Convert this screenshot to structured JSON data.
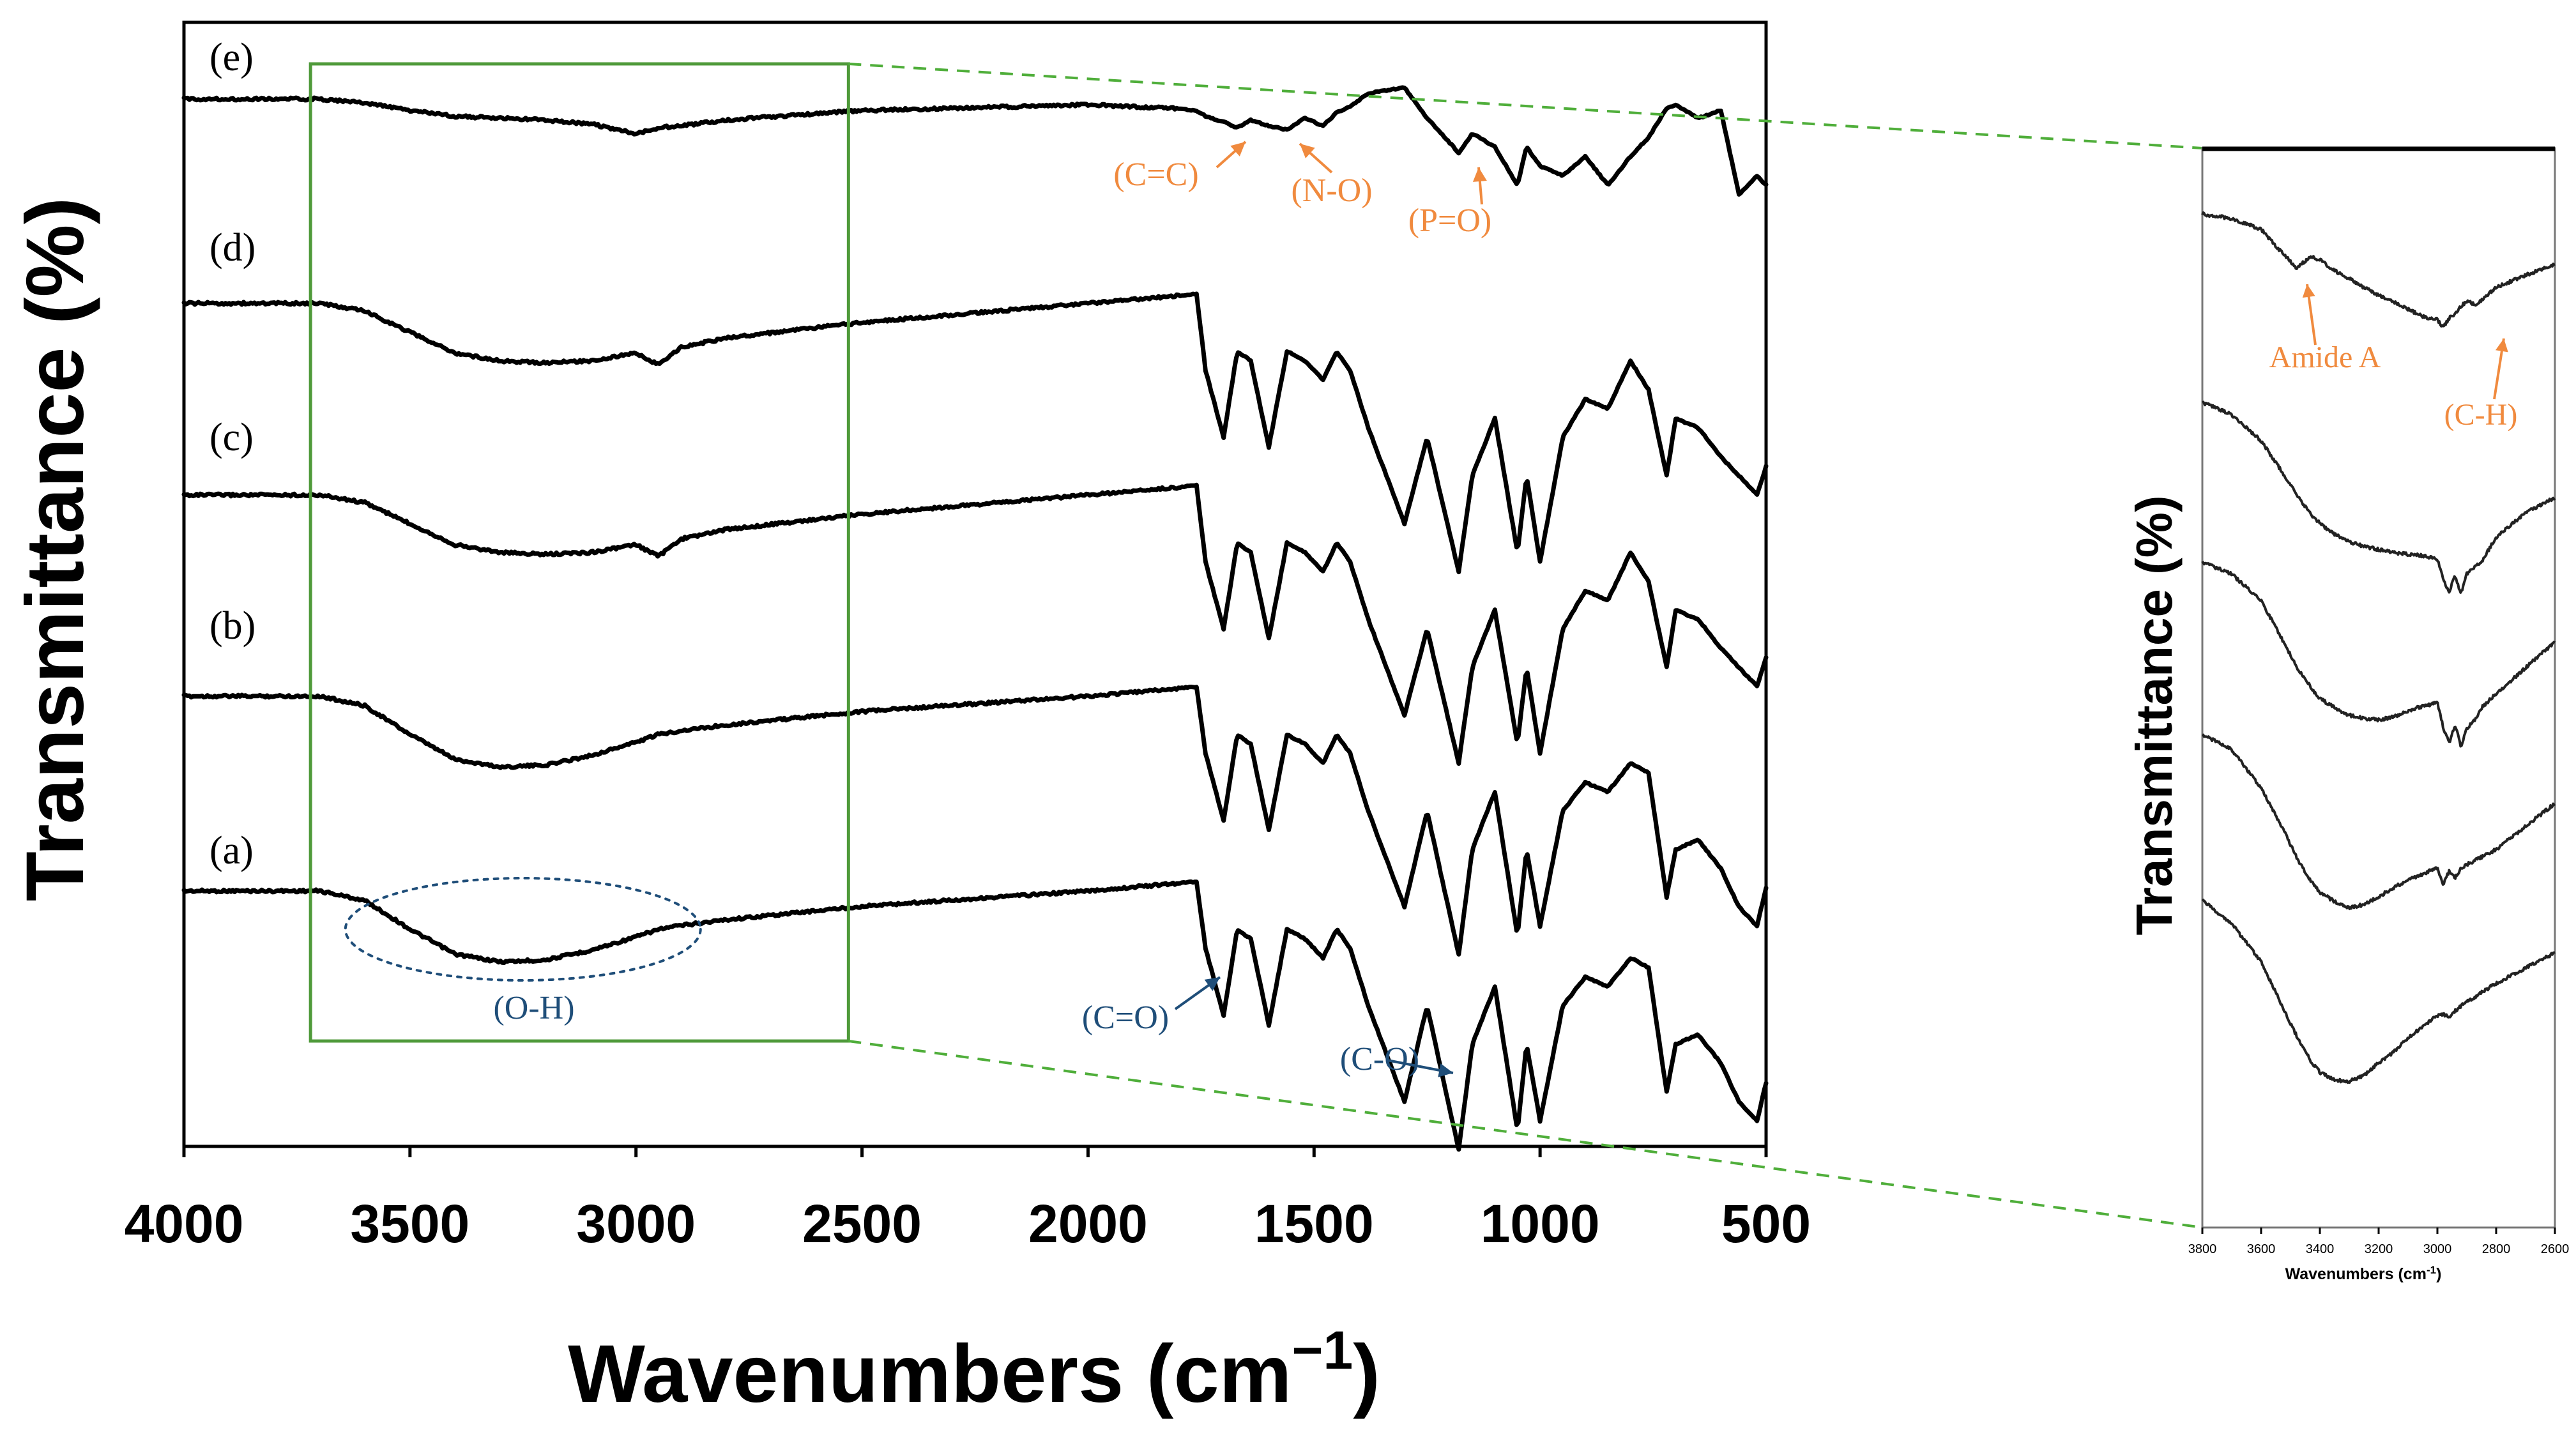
{
  "chart_data": [
    {
      "type": "line",
      "title": "",
      "xlabel": "Wavenumbers (cm",
      "xlabel_superscript": "−1",
      "xlabel_close": ")",
      "ylabel": "Transmittance (%)",
      "xlim": [
        4000,
        500
      ],
      "x_ticks": [
        "4000",
        "3500",
        "3000",
        "2500",
        "2000",
        "1500",
        "1000",
        "500"
      ],
      "x_tick_values": [
        4000,
        3500,
        3000,
        2500,
        2000,
        1500,
        1000,
        500
      ],
      "x": [
        4000,
        3700,
        3600,
        3500,
        3400,
        3300,
        3200,
        3100,
        3000,
        2950,
        2900,
        2800,
        2500,
        2000,
        1800,
        1760,
        1740,
        1700,
        1670,
        1640,
        1600,
        1560,
        1520,
        1480,
        1450,
        1420,
        1380,
        1300,
        1250,
        1180,
        1150,
        1100,
        1050,
        1030,
        1000,
        950,
        900,
        850,
        800,
        760,
        720,
        700,
        650,
        600,
        560,
        520,
        500
      ],
      "series": [
        {
          "name": "(a)",
          "label": "(a)",
          "offset": 0,
          "values": [
            0.0,
            0.0,
            -0.5,
            -2.0,
            -3.3,
            -3.7,
            -3.6,
            -3.1,
            -2.4,
            -2.0,
            -1.8,
            -1.5,
            -0.8,
            0.0,
            0.4,
            0.5,
            -3.0,
            -6.5,
            -2.0,
            -2.5,
            -7.0,
            -2.0,
            -2.5,
            -3.5,
            -2.0,
            -3.0,
            -6.0,
            -11.0,
            -6.0,
            -13.5,
            -8.0,
            -5.0,
            -12.5,
            -8.0,
            -12.0,
            -6.0,
            -4.5,
            -5.0,
            -3.5,
            -4.0,
            -10.5,
            -8.0,
            -7.5,
            -9.0,
            -11.0,
            -12.0,
            -10.0
          ]
        },
        {
          "name": "(b)",
          "label": "(b)",
          "offset": 1,
          "values": [
            0.0,
            0.0,
            -0.5,
            -2.0,
            -3.3,
            -3.7,
            -3.6,
            -3.1,
            -2.4,
            -2.0,
            -1.8,
            -1.5,
            -0.8,
            0.0,
            0.4,
            0.5,
            -3.0,
            -6.5,
            -2.0,
            -2.5,
            -7.0,
            -2.0,
            -2.5,
            -3.5,
            -2.0,
            -3.0,
            -6.0,
            -11.0,
            -6.0,
            -13.5,
            -8.0,
            -5.0,
            -12.5,
            -8.0,
            -12.0,
            -6.0,
            -4.5,
            -5.0,
            -3.5,
            -4.0,
            -10.5,
            -8.0,
            -7.5,
            -9.0,
            -11.0,
            -12.0,
            -10.0
          ]
        },
        {
          "name": "(c)",
          "label": "(c)",
          "offset": 2,
          "values": [
            0.0,
            0.0,
            -0.4,
            -1.5,
            -2.6,
            -3.0,
            -3.1,
            -3.0,
            -2.6,
            -3.2,
            -2.3,
            -1.8,
            -1.0,
            0.0,
            0.4,
            0.5,
            -3.5,
            -7.0,
            -2.5,
            -3.0,
            -7.5,
            -2.5,
            -3.0,
            -4.0,
            -2.5,
            -3.5,
            -6.5,
            -11.5,
            -7.0,
            -14.0,
            -9.0,
            -6.0,
            -13.0,
            -9.0,
            -13.5,
            -7.0,
            -5.0,
            -5.5,
            -3.0,
            -4.5,
            -9.0,
            -6.0,
            -6.5,
            -8.0,
            -9.0,
            -10.0,
            -8.5
          ]
        },
        {
          "name": "(d)",
          "label": "(d)",
          "offset": 3,
          "values": [
            0.0,
            0.0,
            -0.4,
            -1.5,
            -2.6,
            -3.0,
            -3.1,
            -3.0,
            -2.6,
            -3.2,
            -2.3,
            -1.8,
            -1.0,
            0.0,
            0.4,
            0.5,
            -3.5,
            -7.0,
            -2.5,
            -3.0,
            -7.5,
            -2.5,
            -3.0,
            -4.0,
            -2.5,
            -3.5,
            -6.5,
            -11.5,
            -7.0,
            -14.0,
            -9.0,
            -6.0,
            -13.0,
            -9.0,
            -13.5,
            -7.0,
            -5.0,
            -5.5,
            -3.0,
            -4.5,
            -9.0,
            -6.0,
            -6.5,
            -8.0,
            -9.0,
            -10.0,
            -8.5
          ]
        },
        {
          "name": "(e)",
          "label": "(e)",
          "offset": 4,
          "values": [
            0.0,
            0.0,
            -0.2,
            -0.6,
            -0.9,
            -1.0,
            -1.1,
            -1.3,
            -1.8,
            -1.5,
            -1.4,
            -1.1,
            -0.6,
            -0.3,
            -0.5,
            -0.6,
            -0.9,
            -1.2,
            -1.5,
            -1.1,
            -1.4,
            -1.6,
            -1.0,
            -1.4,
            -0.7,
            -0.4,
            0.3,
            0.6,
            -1.0,
            -2.8,
            -1.8,
            -2.5,
            -4.5,
            -2.5,
            -3.5,
            -4.0,
            -3.0,
            -4.5,
            -3.0,
            -2.0,
            -0.5,
            -0.3,
            -1.0,
            -0.6,
            -5.0,
            -4.0,
            -4.5
          ]
        }
      ],
      "annotations": [
        {
          "text": "(O-H)",
          "color": "#1f4e79",
          "series": "(a)",
          "x": 3250
        },
        {
          "text": "(C=O)",
          "color": "#1f4e79",
          "series": "(a)",
          "x": 1700
        },
        {
          "text": "(C-O)",
          "color": "#1f4e79",
          "series": "(a)",
          "x": 1180
        },
        {
          "text": "(C=C)",
          "color": "#f08a3e",
          "series": "(e)",
          "x": 1640
        },
        {
          "text": "(N-O)",
          "color": "#f08a3e",
          "series": "(e)",
          "x": 1560
        },
        {
          "text": "(P=O)",
          "color": "#f08a3e",
          "series": "(e)",
          "x": 1150
        }
      ],
      "highlight_range": [
        3720,
        2530
      ]
    },
    {
      "type": "line",
      "title": "",
      "xlabel": "Wavenumbers (cm",
      "xlabel_superscript": "-1",
      "xlabel_close": ")",
      "ylabel": "Transmittance (%)",
      "xlim": [
        3800,
        2600
      ],
      "x_ticks": [
        "3800",
        "3600",
        "3400",
        "3200",
        "3000",
        "2800",
        "2600"
      ],
      "x_tick_values": [
        3800,
        3600,
        3400,
        3200,
        3000,
        2800,
        2600
      ],
      "x": [
        3800,
        3700,
        3600,
        3530,
        3480,
        3430,
        3400,
        3350,
        3300,
        3250,
        3200,
        3150,
        3100,
        3050,
        3000,
        2980,
        2960,
        2940,
        2920,
        2900,
        2870,
        2850,
        2800,
        2700,
        2600
      ],
      "series": [
        {
          "name": "zoom-e",
          "offset": 4,
          "values": [
            0.0,
            -0.3,
            -1.0,
            -2.5,
            -3.5,
            -2.8,
            -3.0,
            -3.7,
            -4.2,
            -4.8,
            -5.3,
            -5.7,
            -6.2,
            -6.7,
            -6.9,
            -7.4,
            -6.8,
            -6.5,
            -6.0,
            -5.7,
            -5.9,
            -5.6,
            -4.8,
            -4.0,
            -3.3
          ]
        },
        {
          "name": "zoom-d",
          "offset": 3,
          "values": [
            0.0,
            -0.8,
            -2.5,
            -4.5,
            -6.0,
            -7.3,
            -7.9,
            -8.6,
            -9.1,
            -9.4,
            -9.6,
            -9.8,
            -9.9,
            -10.0,
            -10.2,
            -11.6,
            -12.4,
            -11.3,
            -12.5,
            -11.2,
            -10.7,
            -10.4,
            -8.8,
            -7.2,
            -6.2
          ]
        },
        {
          "name": "zoom-c",
          "offset": 2,
          "values": [
            0.0,
            -0.8,
            -2.5,
            -5.0,
            -6.8,
            -8.2,
            -8.9,
            -9.5,
            -10.0,
            -10.2,
            -10.3,
            -10.1,
            -9.7,
            -9.4,
            -9.2,
            -10.8,
            -11.8,
            -10.6,
            -12.0,
            -10.9,
            -10.2,
            -9.5,
            -8.6,
            -6.9,
            -5.2
          ]
        },
        {
          "name": "zoom-b",
          "offset": 1,
          "values": [
            0.0,
            -1.0,
            -3.5,
            -6.0,
            -8.0,
            -9.6,
            -10.3,
            -10.9,
            -11.3,
            -11.1,
            -10.6,
            -10.0,
            -9.5,
            -9.1,
            -8.7,
            -9.8,
            -8.9,
            -9.4,
            -8.7,
            -8.5,
            -8.2,
            -8.0,
            -7.5,
            -6.0,
            -4.5
          ]
        },
        {
          "name": "zoom-a",
          "offset": 0,
          "values": [
            0.0,
            -1.5,
            -4.0,
            -6.8,
            -8.8,
            -10.5,
            -11.2,
            -11.7,
            -11.8,
            -11.4,
            -10.6,
            -9.9,
            -9.0,
            -8.2,
            -7.5,
            -7.4,
            -7.6,
            -7.2,
            -6.9,
            -6.6,
            -6.3,
            -6.0,
            -5.4,
            -4.4,
            -3.4
          ]
        }
      ],
      "annotations": [
        {
          "text": "Amide A",
          "color": "#f08a3e",
          "series": "zoom-e",
          "x": 3520
        },
        {
          "text": "(C-H)",
          "color": "#f08a3e",
          "series": "zoom-e",
          "x": 2880
        }
      ]
    }
  ],
  "labels": {
    "series_letters": [
      "(e)",
      "(d)",
      "(c)",
      "(b)",
      "(a)"
    ]
  },
  "colors": {
    "box": "#4f9a3a",
    "blue": "#1f4e79",
    "orange": "#f08a3e",
    "dash_green": "#4fae3a"
  }
}
